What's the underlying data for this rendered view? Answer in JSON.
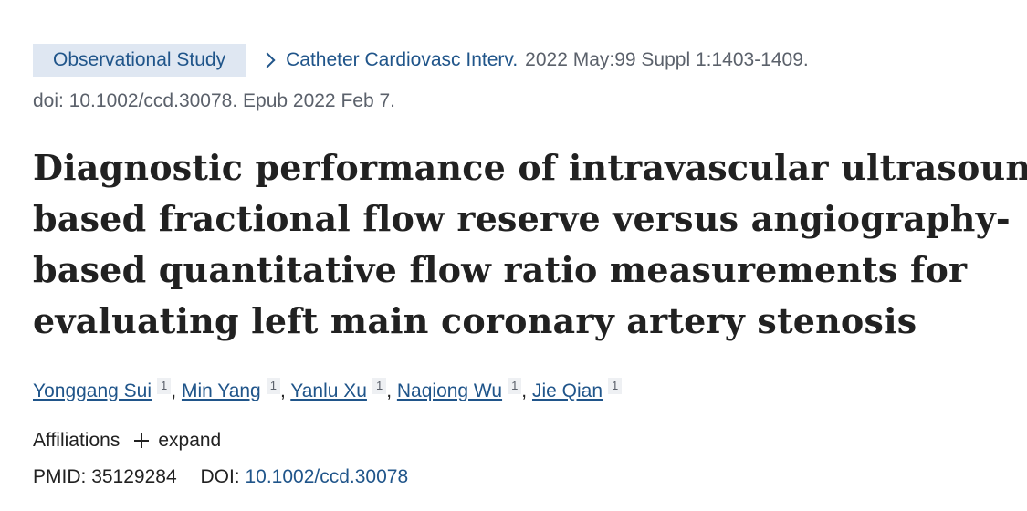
{
  "article": {
    "publication_type": "Observational Study",
    "journal": "Catheter Cardiovasc Interv.",
    "citation": "2022 May:99 Suppl 1:1403-1409.",
    "doi_epub": "doi: 10.1002/ccd.30078. Epub 2022 Feb 7.",
    "title_lines": [
      "Diagnostic performance of intravascular ultrasound-",
      "based fractional flow reserve versus angiography-",
      "based quantitative flow ratio measurements for",
      "evaluating left main coronary artery stenosis"
    ],
    "authors": [
      {
        "name": "Yonggang Sui",
        "aff": "1"
      },
      {
        "name": "Min Yang",
        "aff": "1"
      },
      {
        "name": "Yanlu Xu",
        "aff": "1"
      },
      {
        "name": "Naqiong Wu",
        "aff": "1"
      },
      {
        "name": "Jie Qian",
        "aff": "1"
      }
    ],
    "author_separator": ",",
    "affiliations_label": "Affiliations",
    "expand_label": "expand",
    "pmid_label": "PMID:",
    "pmid": "35129284",
    "doi_label": "DOI:",
    "doi": "10.1002/ccd.30078"
  },
  "icons": {
    "chevron": "chevron-right-icon",
    "expand": "plus-icon"
  },
  "colors": {
    "link": "#20558a",
    "badge_bg": "#dfe7f2",
    "muted": "#5b616b",
    "text": "#212121"
  }
}
